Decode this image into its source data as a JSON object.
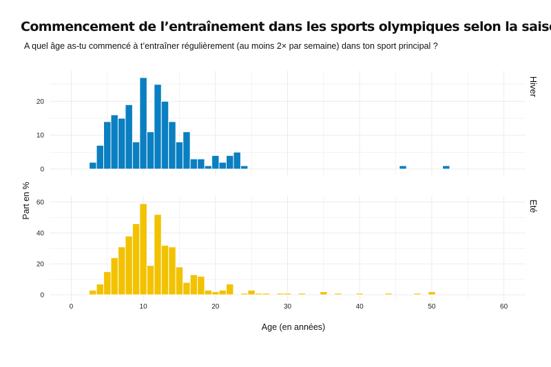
{
  "title": "Commencement de l’entraînement dans les sports olympiques selon la saison",
  "subtitle": "A quel âge as-tu commencé à t’entraîner régulièrement (au moins 2× par semaine) dans ton sport principal ?",
  "colors": {
    "hiver": "#0a7fc1",
    "ete": "#f2c200",
    "grid": "#ebebeb"
  },
  "chart_data": {
    "type": "bar",
    "xlabel": "Age (en années)",
    "ylabel": "Part en %",
    "xlim": [
      -3,
      63
    ],
    "xticks": [
      0,
      10,
      20,
      30,
      40,
      50,
      60
    ],
    "grid": true,
    "panels": [
      {
        "name": "Hiver",
        "ylim": [
          0,
          29
        ],
        "yticks": [
          0,
          10,
          20
        ],
        "x": [
          3,
          4,
          5,
          6,
          7,
          8,
          9,
          10,
          11,
          12,
          13,
          14,
          15,
          16,
          17,
          18,
          19,
          20,
          21,
          22,
          23,
          24,
          46,
          52
        ],
        "values": [
          2,
          7,
          14,
          16,
          15,
          19,
          8,
          27,
          11,
          25,
          20,
          14,
          8,
          11,
          3,
          3,
          1,
          4,
          2,
          4,
          5,
          1,
          1,
          1
        ]
      },
      {
        "name": "Eté",
        "ylim": [
          0,
          64
        ],
        "yticks": [
          0,
          20,
          40,
          60
        ],
        "x": [
          3,
          4,
          5,
          6,
          7,
          8,
          9,
          10,
          11,
          12,
          13,
          14,
          15,
          16,
          17,
          18,
          19,
          20,
          21,
          22,
          24,
          25,
          26,
          27,
          29,
          30,
          32,
          35,
          37,
          40,
          44,
          48,
          50
        ],
        "values": [
          3,
          7,
          15,
          24,
          31,
          38,
          46,
          59,
          19,
          52,
          32,
          31,
          18,
          8,
          13,
          12,
          3,
          2,
          3,
          7,
          1,
          3,
          1,
          1,
          1,
          1,
          1,
          2,
          1,
          1,
          1,
          1,
          2
        ]
      }
    ]
  }
}
